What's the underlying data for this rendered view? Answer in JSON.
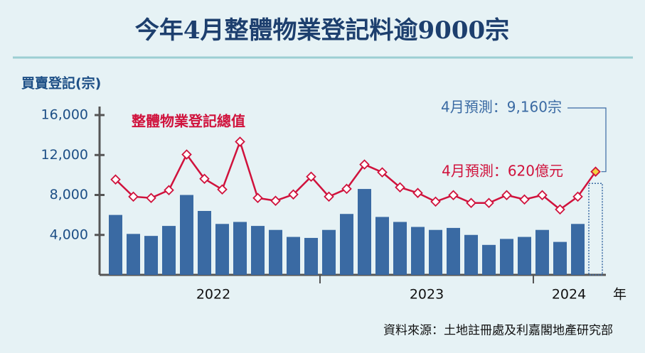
{
  "title": "今年4月整體物業登記料逾9000宗",
  "source": "資料來源：土地註冊處及利嘉閣地產研究部",
  "chart_data": {
    "type": "combo",
    "y_label": "買賣登記(宗)",
    "categories": [
      null,
      null,
      null,
      null,
      null,
      null,
      null,
      null,
      null,
      null,
      null,
      null,
      null,
      null,
      null,
      null,
      null,
      null,
      null,
      null,
      null,
      null,
      null,
      null,
      null,
      null,
      null,
      null
    ],
    "x_group_labels": [
      "2022",
      "2023",
      "2024"
    ],
    "x_unit": "年",
    "ylim": [
      0,
      16000
    ],
    "yticks": [
      {
        "value": 4000,
        "label": "4,000"
      },
      {
        "value": 8000,
        "label": "8,000"
      },
      {
        "value": 12000,
        "label": "12,000"
      },
      {
        "value": 16000,
        "label": "16,000"
      }
    ],
    "y2lim": [
      0,
      960
    ],
    "forecast_last": true,
    "series": [
      {
        "type": "bar",
        "color": "#3a6aa3",
        "values": [
          6000,
          4100,
          3900,
          4900,
          8000,
          6400,
          5100,
          5300,
          4900,
          4500,
          3800,
          3700,
          4500,
          6100,
          8600,
          5800,
          5300,
          4800,
          4500,
          4700,
          4000,
          3000,
          3600,
          3800,
          4500,
          3300,
          5100,
          9160
        ]
      },
      {
        "type": "line",
        "name": "整體物業登記總值",
        "color": "#d0123c",
        "axis": "y2",
        "values": [
          573,
          470,
          462,
          509,
          723,
          577,
          513,
          800,
          462,
          445,
          483,
          590,
          470,
          517,
          663,
          616,
          526,
          492,
          440,
          479,
          432,
          432,
          479,
          453,
          479,
          393,
          470,
          620
        ]
      }
    ],
    "annotations": [
      "4月預測：9,160宗",
      "4月預測：620億元"
    ]
  }
}
